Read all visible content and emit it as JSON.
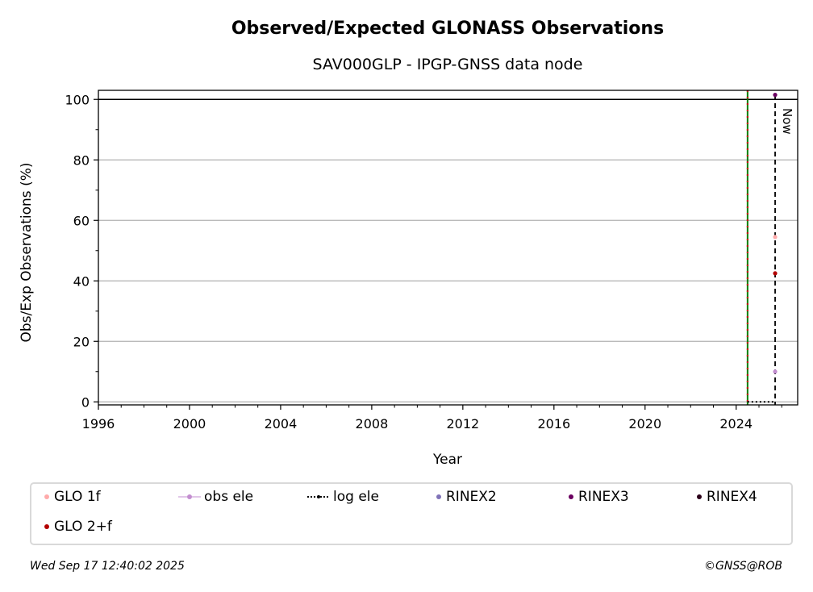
{
  "chart_data": {
    "type": "scatter",
    "title": "Observed/Expected GLONASS Observations",
    "subtitle": "SAV000GLP - IPGP-GNSS data node",
    "xlabel": "Year",
    "ylabel": "Obs/Exp Observations (%)",
    "xlim": [
      1996,
      2026.7
    ],
    "ylim": [
      -1,
      103
    ],
    "xticks": [
      "1996",
      "2000",
      "2004",
      "2008",
      "2012",
      "2016",
      "2020",
      "2024"
    ],
    "yticks": [
      "0",
      "20",
      "40",
      "60",
      "80",
      "100"
    ],
    "grid": "horizontal",
    "reference_line_y": 100,
    "now_x": 2025.71,
    "now_label": "Now",
    "vertical_lines": [
      {
        "x": 2024.5,
        "color": "#008000"
      },
      {
        "x": 2024.5,
        "color": "#cc0000",
        "style": "dotted"
      }
    ],
    "series": [
      {
        "name": "GLO 1f",
        "color": "#ffaaaa",
        "points": [
          [
            2025.71,
            54.5
          ]
        ]
      },
      {
        "name": "GLO 2+f",
        "color": "#b30000",
        "points": [
          [
            2025.71,
            42.5
          ]
        ]
      },
      {
        "name": "obs ele",
        "color": "#c38ed0",
        "points": [
          [
            2025.71,
            10
          ]
        ]
      },
      {
        "name": "log ele",
        "color": "#000000",
        "points": [
          [
            2024.5,
            0
          ],
          [
            2025.71,
            0
          ]
        ]
      },
      {
        "name": "RINEX2",
        "color": "#8073b8",
        "points": []
      },
      {
        "name": "RINEX3",
        "color": "#6a0060",
        "points": [
          [
            2025.71,
            101.5
          ]
        ]
      },
      {
        "name": "RINEX4",
        "color": "#2a0018",
        "points": []
      }
    ],
    "legend_position": "bottom"
  },
  "legend": {
    "glo1f": "GLO 1f",
    "obs_ele": "obs ele",
    "log_ele": "log ele",
    "rinex2": "RINEX2",
    "rinex3": "RINEX3",
    "rinex4": "RINEX4",
    "glo2f": "GLO 2+f"
  },
  "footer": {
    "timestamp": "Wed Sep 17 12:40:02 2025",
    "copyright": "©GNSS@ROB"
  }
}
